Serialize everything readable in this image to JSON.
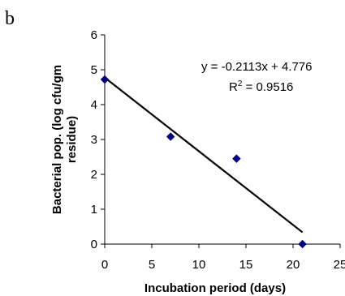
{
  "panel_letter": "b",
  "chart_data": {
    "type": "scatter",
    "xlabel": "Incubation period (days)",
    "ylabel_lines": [
      "Bacterial pop. (log cfu/gm",
      "residue)"
    ],
    "xlim": [
      0,
      25
    ],
    "ylim": [
      0,
      6
    ],
    "xticks": [
      0,
      5,
      10,
      15,
      20,
      25
    ],
    "yticks": [
      0,
      1,
      2,
      3,
      4,
      5,
      6
    ],
    "grid": false,
    "legend": "none",
    "series": [
      {
        "x": [
          0,
          7,
          14,
          21
        ],
        "y": [
          4.72,
          3.08,
          2.45,
          0.0
        ],
        "marker": "diamond",
        "color": "#000080"
      }
    ],
    "trendline": {
      "slope": -0.2113,
      "intercept": 4.776,
      "x_range": [
        0,
        21
      ],
      "color": "#000000"
    },
    "annotations": {
      "equation": "y = -0.2113x + 4.776",
      "r2_prefix": "R",
      "r2_sup": "2",
      "r2_value": " = 0.9516"
    }
  }
}
